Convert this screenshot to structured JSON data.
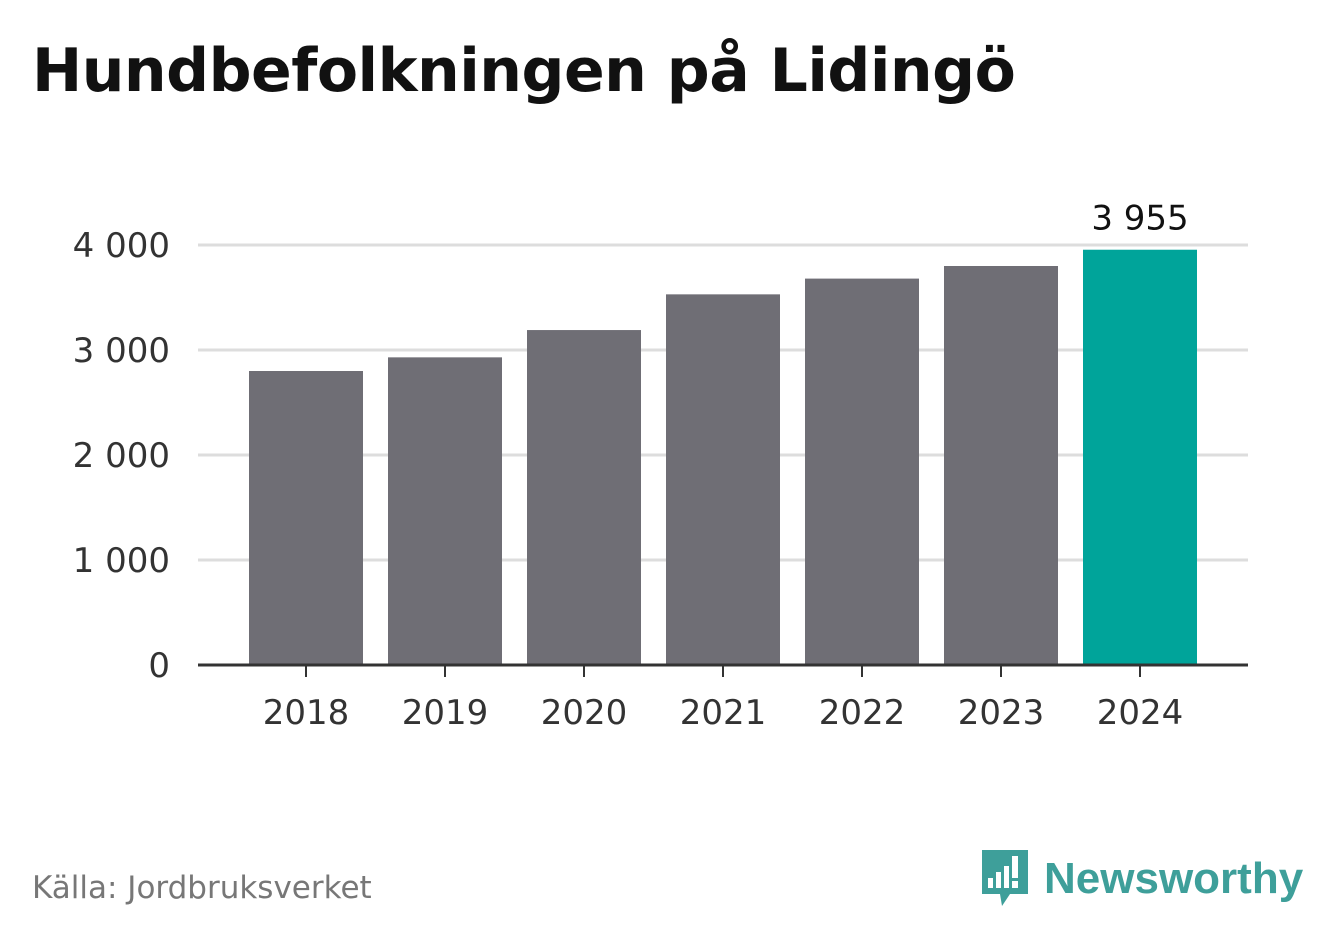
{
  "chart_data": {
    "type": "bar",
    "title": "Hundbefolkningen på Lidingö",
    "categories": [
      "2018",
      "2019",
      "2020",
      "2021",
      "2022",
      "2023",
      "2024"
    ],
    "values": [
      2800,
      2930,
      3190,
      3530,
      3680,
      3800,
      3955
    ],
    "y_ticks": [
      "0",
      "1 000",
      "2 000",
      "3 000",
      "4 000"
    ],
    "ylim": [
      0,
      4000
    ],
    "grid": true,
    "highlight": {
      "index": 6,
      "label": "3 955"
    },
    "colors": {
      "bar": "#6f6e75",
      "highlight": "#00a49a",
      "grid": "#dddddd",
      "axis": "#333333"
    }
  },
  "footer": {
    "source": "Källa: Jordbruksverket",
    "brand": "Newsworthy",
    "brand_icon": "bar-chart-speech-bubble-icon",
    "brand_color": "#3e9f9a"
  }
}
